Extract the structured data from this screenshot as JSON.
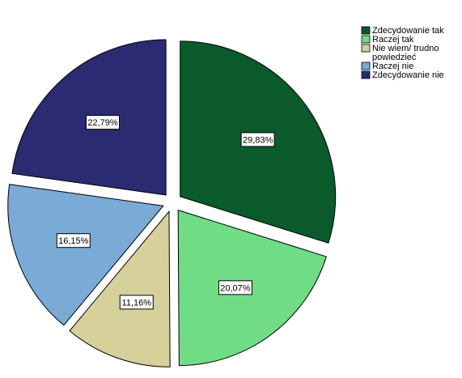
{
  "chart_data": {
    "type": "pie",
    "categories": [
      "Zdecydowanie tak",
      "Raczej tak",
      "Nie wiem/ trudno powiedzieć",
      "Raczej nie",
      "Zdecydowanie nie"
    ],
    "values": [
      29.83,
      20.07,
      11.16,
      16.15,
      22.79
    ],
    "data_labels": [
      "29,83%",
      "20,07%",
      "11,16%",
      "16,15%",
      "22,79%"
    ],
    "colors": [
      "#0a5a2c",
      "#70dc85",
      "#d6d09a",
      "#7aaad6",
      "#2b2b73"
    ],
    "exploded": true,
    "legend_position": "top-right",
    "legend": {
      "items": [
        {
          "lines": [
            "Zdecydowanie tak"
          ],
          "color": "#0a5a2c"
        },
        {
          "lines": [
            "Raczej tak"
          ],
          "color": "#70dc85"
        },
        {
          "lines": [
            "Nie wiem/ trudno",
            "powiedzieć"
          ],
          "color": "#d6d09a"
        },
        {
          "lines": [
            "Raczej nie"
          ],
          "color": "#7aaad6"
        },
        {
          "lines": [
            "Zdecydowanie nie"
          ],
          "color": "#2b2b73"
        }
      ]
    }
  }
}
